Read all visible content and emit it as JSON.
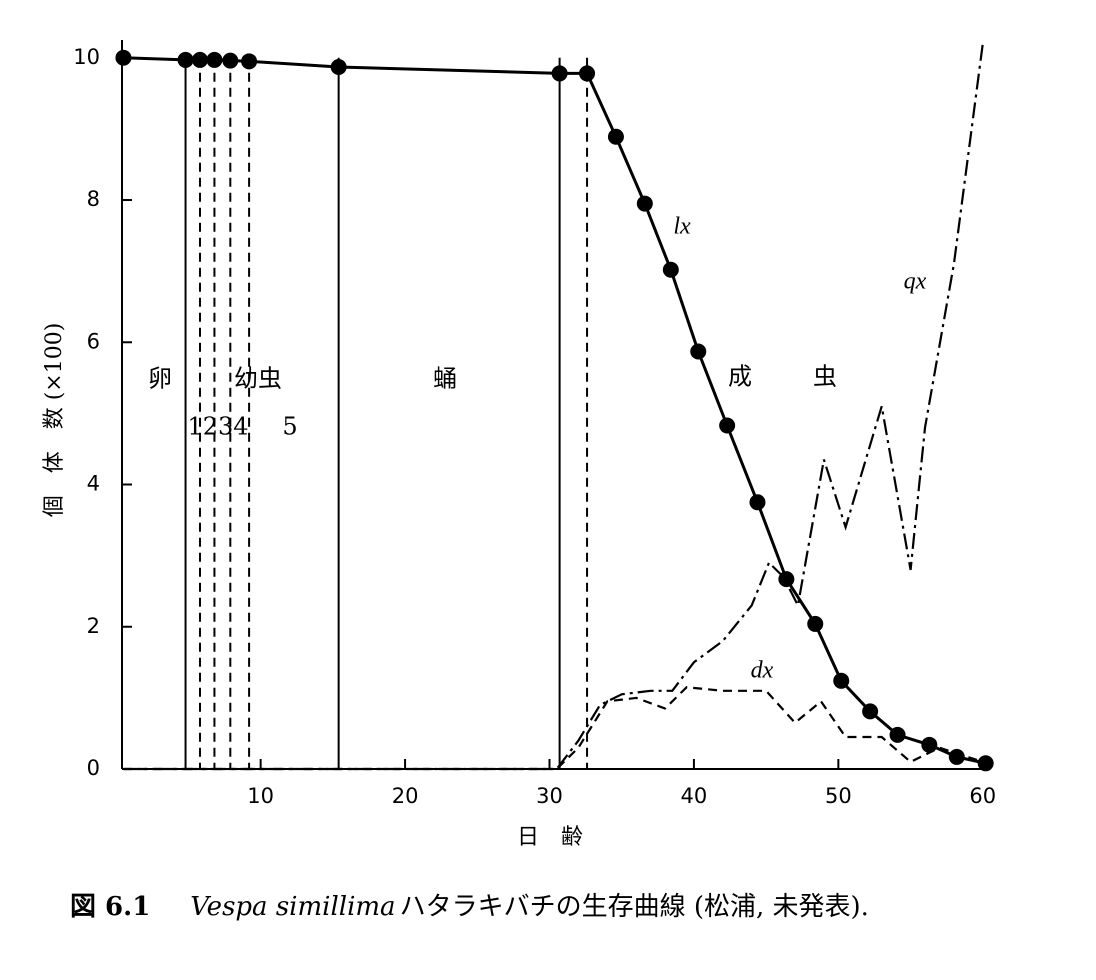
{
  "chart_data": {
    "type": "line",
    "y_label": "個　体　数 (×100)",
    "x_label": "日　齢",
    "caption": {
      "number": "図 6.1",
      "species": "Vespa simillima",
      "text": "ハタラキバチの生存曲線 (松浦, 未発表)."
    },
    "xlim": [
      0.4,
      60.5
    ],
    "ylim": [
      0,
      10.25
    ],
    "xticks": [
      10,
      20,
      30,
      40,
      50,
      60
    ],
    "yticks": [
      0,
      2,
      4,
      6,
      8,
      10
    ],
    "grid": false,
    "stage_boundaries": [
      {
        "x": 4.8,
        "style": "solid"
      },
      {
        "x": 5.8,
        "style": "dashed"
      },
      {
        "x": 6.8,
        "style": "dashed"
      },
      {
        "x": 7.9,
        "style": "dashed"
      },
      {
        "x": 9.2,
        "style": "dashed"
      },
      {
        "x": 15.4,
        "style": "solid"
      },
      {
        "x": 30.7,
        "style": "solid"
      },
      {
        "x": 32.6,
        "style": "dashed"
      }
    ],
    "annotations": [
      "卵",
      "幼虫",
      "1234",
      "5",
      "蛹",
      "成",
      "虫"
    ],
    "series": [
      {
        "name": "lx",
        "color": "#000000",
        "style": "solid",
        "markers": true,
        "x": [
          0.5,
          4.8,
          5.8,
          6.8,
          7.9,
          9.2,
          15.4,
          30.7,
          32.6,
          34.6,
          36.6,
          38.4,
          40.3,
          42.3,
          44.4,
          46.4,
          48.4,
          50.2,
          52.2,
          54.1,
          56.3,
          58.2,
          60.2
        ],
        "values": [
          10,
          9.97,
          9.97,
          9.97,
          9.96,
          9.95,
          9.87,
          9.78,
          9.78,
          8.89,
          7.95,
          7.02,
          5.87,
          4.83,
          3.75,
          2.67,
          2.04,
          1.24,
          0.81,
          0.48,
          0.34,
          0.17,
          0.08
        ]
      },
      {
        "name": "dx",
        "color": "#000000",
        "style": "dashed",
        "markers": false,
        "x": [
          0.5,
          30.5,
          32,
          34,
          36,
          38,
          39.5,
          42,
          45,
          47,
          48.8,
          50.5,
          53,
          55,
          57,
          60
        ],
        "values": [
          0,
          0,
          0.3,
          0.95,
          1.0,
          0.85,
          1.15,
          1.1,
          1.1,
          0.65,
          0.95,
          0.45,
          0.45,
          0.1,
          0.3,
          0.1
        ]
      },
      {
        "name": "qx",
        "color": "#000000",
        "style": "dashdot",
        "markers": false,
        "x": [
          0.5,
          30.5,
          32,
          33.5,
          35,
          37,
          38.5,
          40,
          42,
          44,
          45.2,
          46.2,
          47.2,
          49,
          50.5,
          53,
          55,
          56,
          58,
          60
        ],
        "values": [
          0,
          0,
          0.4,
          0.9,
          1.05,
          1.1,
          1.1,
          1.5,
          1.8,
          2.3,
          2.9,
          2.7,
          2.3,
          4.35,
          3.4,
          5.1,
          2.8,
          4.8,
          7.1,
          10.2
        ]
      }
    ]
  }
}
